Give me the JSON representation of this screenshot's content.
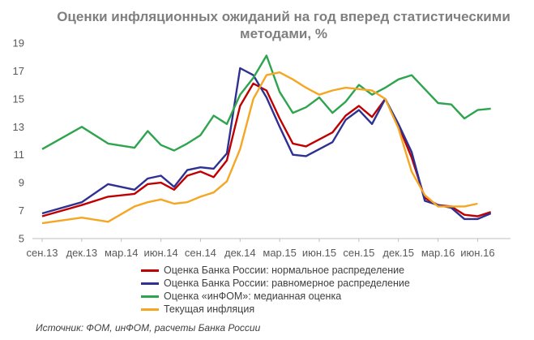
{
  "chart_data": {
    "type": "line",
    "title_line1": "Оценки инфляционных ожиданий на год вперед статистическими",
    "title_line2": "методами, %",
    "x_ticks": [
      "сен.13",
      "дек.13",
      "мар.14",
      "июн.14",
      "сен.14",
      "дек.14",
      "мар.15",
      "июн.15",
      "сен.15",
      "дек.15",
      "мар.16",
      "июн.16"
    ],
    "y_ticks": [
      5,
      7,
      9,
      11,
      13,
      15,
      17,
      19
    ],
    "ylim": [
      5,
      19
    ],
    "x_months_range": [
      "2013-09",
      "2016-08"
    ],
    "grid": false,
    "legend_position": "bottom",
    "series": [
      {
        "name": "Оценка Банка России: нормальное распределение",
        "color": "#c00000",
        "points": [
          [
            "2013-09",
            6.6
          ],
          [
            "2013-12",
            7.4
          ],
          [
            "2014-02",
            8.0
          ],
          [
            "2014-04",
            8.2
          ],
          [
            "2014-05",
            8.9
          ],
          [
            "2014-06",
            9.0
          ],
          [
            "2014-07",
            8.5
          ],
          [
            "2014-08",
            9.5
          ],
          [
            "2014-09",
            9.8
          ],
          [
            "2014-10",
            9.4
          ],
          [
            "2014-11",
            10.6
          ],
          [
            "2014-12",
            14.5
          ],
          [
            "2015-01",
            16.1
          ],
          [
            "2015-02",
            15.6
          ],
          [
            "2015-03",
            13.6
          ],
          [
            "2015-04",
            11.8
          ],
          [
            "2015-05",
            11.6
          ],
          [
            "2015-06",
            12.1
          ],
          [
            "2015-07",
            12.6
          ],
          [
            "2015-08",
            13.8
          ],
          [
            "2015-09",
            14.5
          ],
          [
            "2015-10",
            13.7
          ],
          [
            "2015-11",
            15.0
          ],
          [
            "2015-12",
            13.1
          ],
          [
            "2016-01",
            10.8
          ],
          [
            "2016-02",
            7.9
          ],
          [
            "2016-03",
            7.4
          ],
          [
            "2016-04",
            7.3
          ],
          [
            "2016-05",
            6.7
          ],
          [
            "2016-06",
            6.6
          ],
          [
            "2016-07",
            6.9
          ]
        ]
      },
      {
        "name": "Оценка Банка России: равномерное распределение",
        "color": "#2e3192",
        "points": [
          [
            "2013-09",
            6.8
          ],
          [
            "2013-12",
            7.6
          ],
          [
            "2014-02",
            8.9
          ],
          [
            "2014-04",
            8.5
          ],
          [
            "2014-05",
            9.3
          ],
          [
            "2014-06",
            9.5
          ],
          [
            "2014-07",
            8.7
          ],
          [
            "2014-08",
            9.9
          ],
          [
            "2014-09",
            10.1
          ],
          [
            "2014-10",
            10.0
          ],
          [
            "2014-11",
            11.1
          ],
          [
            "2014-12",
            17.2
          ],
          [
            "2015-01",
            16.7
          ],
          [
            "2015-02",
            15.1
          ],
          [
            "2015-03",
            13.0
          ],
          [
            "2015-04",
            11.0
          ],
          [
            "2015-05",
            10.9
          ],
          [
            "2015-06",
            11.4
          ],
          [
            "2015-07",
            11.9
          ],
          [
            "2015-08",
            13.5
          ],
          [
            "2015-09",
            14.2
          ],
          [
            "2015-10",
            13.2
          ],
          [
            "2015-11",
            15.0
          ],
          [
            "2015-12",
            13.2
          ],
          [
            "2016-01",
            11.2
          ],
          [
            "2016-02",
            7.7
          ],
          [
            "2016-03",
            7.4
          ],
          [
            "2016-04",
            7.2
          ],
          [
            "2016-05",
            6.4
          ],
          [
            "2016-06",
            6.4
          ],
          [
            "2016-07",
            6.8
          ]
        ]
      },
      {
        "name": "Оценка «инФОМ»: медианная оценка",
        "color": "#2ea44f",
        "points": [
          [
            "2013-09",
            11.4
          ],
          [
            "2013-12",
            13.0
          ],
          [
            "2014-02",
            11.8
          ],
          [
            "2014-04",
            11.5
          ],
          [
            "2014-05",
            12.7
          ],
          [
            "2014-06",
            11.7
          ],
          [
            "2014-07",
            11.3
          ],
          [
            "2014-08",
            11.8
          ],
          [
            "2014-09",
            12.4
          ],
          [
            "2014-10",
            13.8
          ],
          [
            "2014-11",
            13.2
          ],
          [
            "2014-12",
            15.3
          ],
          [
            "2015-01",
            16.5
          ],
          [
            "2015-02",
            18.1
          ],
          [
            "2015-03",
            15.5
          ],
          [
            "2015-04",
            14.0
          ],
          [
            "2015-05",
            14.4
          ],
          [
            "2015-06",
            15.1
          ],
          [
            "2015-07",
            14.0
          ],
          [
            "2015-08",
            14.8
          ],
          [
            "2015-09",
            16.0
          ],
          [
            "2015-10",
            15.3
          ],
          [
            "2015-11",
            15.8
          ],
          [
            "2015-12",
            16.4
          ],
          [
            "2016-01",
            16.7
          ],
          [
            "2016-02",
            15.7
          ],
          [
            "2016-03",
            14.7
          ],
          [
            "2016-04",
            14.6
          ],
          [
            "2016-05",
            13.6
          ],
          [
            "2016-06",
            14.2
          ],
          [
            "2016-07",
            14.3
          ]
        ]
      },
      {
        "name": "Текущая инфляция",
        "color": "#f5a623",
        "points": [
          [
            "2013-09",
            6.1
          ],
          [
            "2013-12",
            6.5
          ],
          [
            "2014-02",
            6.2
          ],
          [
            "2014-04",
            7.3
          ],
          [
            "2014-05",
            7.6
          ],
          [
            "2014-06",
            7.8
          ],
          [
            "2014-07",
            7.5
          ],
          [
            "2014-08",
            7.6
          ],
          [
            "2014-09",
            8.0
          ],
          [
            "2014-10",
            8.3
          ],
          [
            "2014-11",
            9.1
          ],
          [
            "2014-12",
            11.4
          ],
          [
            "2015-01",
            15.0
          ],
          [
            "2015-02",
            16.7
          ],
          [
            "2015-03",
            16.9
          ],
          [
            "2015-04",
            16.4
          ],
          [
            "2015-05",
            15.8
          ],
          [
            "2015-06",
            15.3
          ],
          [
            "2015-07",
            15.6
          ],
          [
            "2015-08",
            15.8
          ],
          [
            "2015-09",
            15.7
          ],
          [
            "2015-10",
            15.6
          ],
          [
            "2015-11",
            15.0
          ],
          [
            "2015-12",
            12.9
          ],
          [
            "2016-01",
            9.8
          ],
          [
            "2016-02",
            8.1
          ],
          [
            "2016-03",
            7.3
          ],
          [
            "2016-04",
            7.3
          ],
          [
            "2016-05",
            7.3
          ],
          [
            "2016-06",
            7.5
          ]
        ]
      }
    ]
  },
  "source": "Источник: ФОМ, инФОМ, расчеты Банка России"
}
